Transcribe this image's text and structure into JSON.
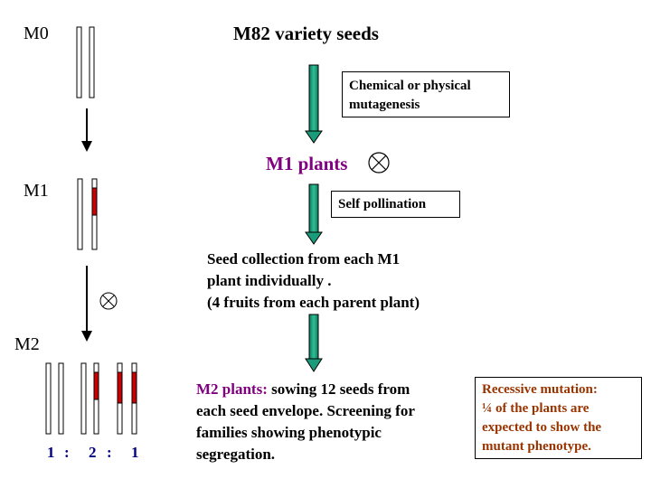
{
  "generations": {
    "m0": "M0",
    "m1": "M1",
    "m2": "M2"
  },
  "title": "M82 variety seeds",
  "mutagenesis_box": {
    "line1": "Chemical or physical",
    "line2": "mutagenesis"
  },
  "m1_plants": "M1 plants",
  "self_pollination": "Self pollination",
  "seed_collection": {
    "line1": "Seed collection from each M1",
    "line2": "plant individually .",
    "line3": "(4 fruits from each parent plant)"
  },
  "m2_text": {
    "label": "M2 plants:",
    "line1_rest": " sowing 12 seeds from",
    "line2": "each seed envelope. Screening for",
    "line3": "families showing phenotypic",
    "line4": "segregation."
  },
  "recessive_box": {
    "line1": "Recessive mutation:",
    "line2": "¼ of the plants are",
    "line3": "expected to show the",
    "line4": "mutant phenotype."
  },
  "ratio": {
    "a": "1",
    "sep1": ":",
    "b": "2",
    "sep2": ":",
    "c": "1"
  },
  "colors": {
    "arrow_green": "#1a9b7a",
    "mutation_red": "#cc0000",
    "purple": "#800080",
    "brown": "#993300",
    "navy": "#000080"
  },
  "icons": {
    "self_cross": "circled-x-icon"
  }
}
